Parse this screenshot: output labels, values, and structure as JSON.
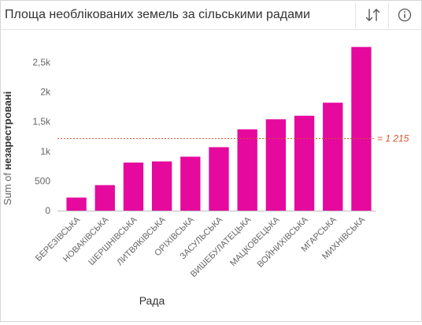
{
  "widget": {
    "title": "Площа необлікованих земель за сільськими радами",
    "icons": {
      "sort": "sort-arrows-icon",
      "info": "info-circle-icon"
    }
  },
  "colors": {
    "bar": "#E5099D",
    "refline": "#D9512C",
    "axis": "#bdbdbd",
    "tick_text": "#666666"
  },
  "chart_data": {
    "type": "bar",
    "title": "",
    "xlabel": "Рада",
    "ylabel_prefix": "Sum of ",
    "ylabel_bold": "незарестровані",
    "ylim": [
      0,
      2900
    ],
    "yticks": [
      0,
      500,
      1000,
      1500,
      2000,
      2500
    ],
    "ytick_labels": [
      "0",
      "500",
      "1k",
      "1,5k",
      "2k",
      "2,5k"
    ],
    "grid": false,
    "categories": [
      "БЕРЕЗІВСЬКА",
      "НОВАКІВСЬКА",
      "ШЕРШНІВСЬКА",
      "ЛИТВЯКІВСЬКА",
      "ОРІХІВСЬКА",
      "ЗАСУЛЬСЬКА",
      "ВИШЕБУЛАТЕЦЬКА",
      "МАЦКОВЕЦЬКА",
      "ВОЙНИХІВСЬКА",
      "МГАРСЬКА",
      "МИХНІВСЬКА"
    ],
    "values": [
      220,
      430,
      810,
      830,
      910,
      1070,
      1370,
      1540,
      1600,
      1820,
      2760
    ],
    "reference_line": {
      "value": 1215,
      "label": "= 1 215"
    }
  }
}
